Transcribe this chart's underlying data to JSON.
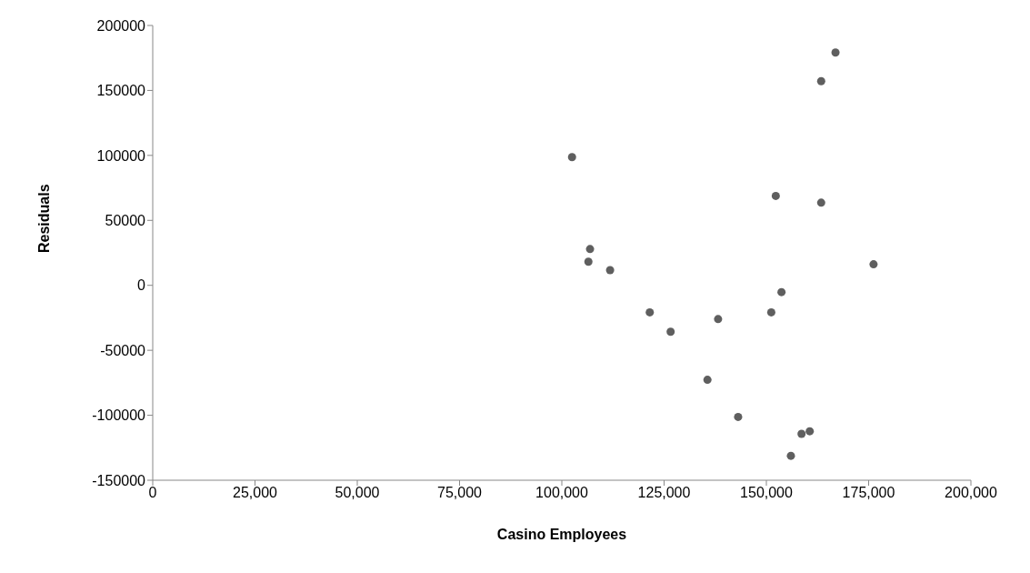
{
  "chart_data": {
    "type": "scatter",
    "xlabel": "Casino Employees",
    "ylabel": "Residuals",
    "x": [
      102500,
      106900,
      106500,
      111800,
      121500,
      126600,
      138200,
      135600,
      143100,
      151200,
      153700,
      152300,
      163400,
      163400,
      166900,
      176200,
      158600,
      160600,
      156000
    ],
    "series": [
      {
        "color": "#5f5f5f",
        "values": [
          98700,
          27900,
          18200,
          11700,
          -20800,
          -35700,
          -26000,
          -72700,
          -101300,
          -20800,
          -5200,
          68800,
          63600,
          157100,
          179200,
          16200,
          -114300,
          -112300,
          -131200
        ]
      }
    ],
    "xlim": [
      0,
      200000
    ],
    "xticks": [
      0,
      {
        "value": 25000,
        "label": "25,000"
      },
      {
        "value": 50000,
        "label": "50,000"
      },
      {
        "value": 75000,
        "label": "75,000"
      },
      {
        "value": 100000,
        "label": "100,000"
      },
      {
        "value": 125000,
        "label": "125,000"
      },
      {
        "value": 150000,
        "label": "150,000"
      },
      {
        "value": 175000,
        "label": "175,000"
      },
      {
        "value": 200000,
        "label": "200,000"
      }
    ],
    "ylim": [
      -150000,
      200000
    ],
    "yticks": [
      -150000,
      -100000,
      -50000,
      0,
      50000,
      100000,
      150000,
      200000
    ],
    "grid": false,
    "legend": false,
    "marker": "circle"
  }
}
